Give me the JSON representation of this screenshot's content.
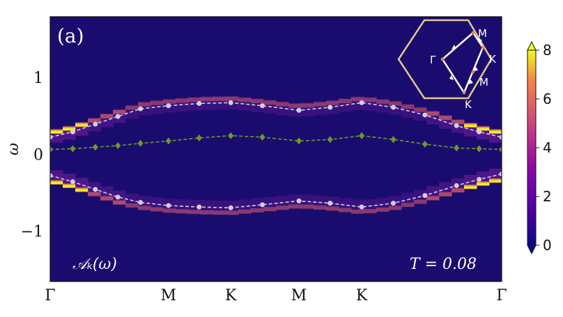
{
  "chart_data": {
    "type": "heatmap",
    "title": "",
    "panel_label": "(a)",
    "annotation_left": "𝒜ₖ(ω)",
    "annotation_right": "T = 0.08",
    "ylabel": "ω",
    "ylim": [
      -1.65,
      1.8
    ],
    "yticks": [
      {
        "value": 1,
        "label": "1"
      },
      {
        "value": 0,
        "label": "0"
      },
      {
        "value": -1,
        "label": "−1"
      }
    ],
    "xlim": [
      0,
      1
    ],
    "xticks": [
      {
        "value": 0.0,
        "label": "Γ"
      },
      {
        "value": 0.262,
        "label": "M"
      },
      {
        "value": 0.4,
        "label": "K"
      },
      {
        "value": 0.551,
        "label": "M"
      },
      {
        "value": 0.69,
        "label": "K"
      },
      {
        "value": 1.0,
        "label": "Γ"
      }
    ],
    "colorbar": {
      "colormap": "plasma",
      "min": 0,
      "max": 8,
      "ticks": [
        {
          "value": 0,
          "label": "0"
        },
        {
          "value": 2,
          "label": "2"
        },
        {
          "value": 4,
          "label": "4"
        },
        {
          "value": 6,
          "label": "6"
        },
        {
          "value": 8,
          "label": "8"
        }
      ],
      "extend": "both"
    },
    "series": [
      {
        "marker": "circle",
        "color": "#cfcfe6",
        "x": [
          0.0,
          0.05,
          0.1,
          0.15,
          0.2,
          0.262,
          0.33,
          0.4,
          0.47,
          0.551,
          0.62,
          0.69,
          0.76,
          0.83,
          0.9,
          0.95,
          1.0
        ],
        "y": [
          0.23,
          0.3,
          0.4,
          0.5,
          0.6,
          0.64,
          0.67,
          0.68,
          0.64,
          0.58,
          0.62,
          0.68,
          0.62,
          0.52,
          0.38,
          0.3,
          0.23
        ]
      },
      {
        "marker": "circle",
        "color": "#cfcfe6",
        "x": [
          0.0,
          0.05,
          0.1,
          0.15,
          0.2,
          0.262,
          0.33,
          0.4,
          0.47,
          0.551,
          0.62,
          0.69,
          0.76,
          0.83,
          0.9,
          0.95,
          1.0
        ],
        "y": [
          -0.27,
          -0.35,
          -0.45,
          -0.55,
          -0.62,
          -0.66,
          -0.68,
          -0.69,
          -0.65,
          -0.6,
          -0.63,
          -0.68,
          -0.63,
          -0.53,
          -0.4,
          -0.32,
          -0.25
        ]
      },
      {
        "marker": "diamond",
        "color": "#6b9a2c",
        "x": [
          0.0,
          0.05,
          0.1,
          0.15,
          0.2,
          0.262,
          0.33,
          0.4,
          0.47,
          0.551,
          0.62,
          0.69,
          0.76,
          0.83,
          0.9,
          0.95,
          1.0
        ],
        "y": [
          0.07,
          0.08,
          0.1,
          0.12,
          0.15,
          0.18,
          0.22,
          0.25,
          0.23,
          0.18,
          0.2,
          0.25,
          0.2,
          0.14,
          0.09,
          0.08,
          0.07
        ]
      }
    ],
    "inset": {
      "labels": {
        "gamma": "Γ",
        "m_top": "M",
        "k_right": "K",
        "m_bottom": "M",
        "k_bottom": "K"
      },
      "hexagon_color": "#e3c98a",
      "path_color": "#ffffff"
    }
  }
}
